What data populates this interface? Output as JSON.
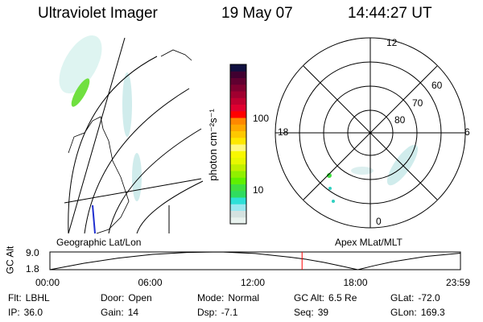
{
  "header": {
    "instrument": "Ultraviolet Imager",
    "date": "19 May 07",
    "time": "14:44:27 UT"
  },
  "colorbar": {
    "label": "photon cm⁻²s⁻¹",
    "ticks": [
      "100",
      "10"
    ],
    "colors": [
      "#e8f2ee",
      "#d4e2e0",
      "#9ae8f0",
      "#2ee0d8",
      "#30dc60",
      "#40e040",
      "#60f000",
      "#90f000",
      "#c0f000",
      "#e8f800",
      "#f8f800",
      "#fff880",
      "#ffe800",
      "#ffc800",
      "#ffa800",
      "#ff8800",
      "#ff0000",
      "#e00030",
      "#c00030",
      "#a00030",
      "#800030",
      "#600030",
      "#400030",
      "#101040"
    ]
  },
  "polar": {
    "mlt_labels": [
      "12",
      "18",
      "6",
      "0"
    ],
    "lat_labels": [
      "60",
      "70",
      "80"
    ]
  },
  "panels": {
    "left_label": "Geographic Lat/Lon",
    "right_label": "Apex MLat/MLT"
  },
  "chart_data": {
    "type": "line",
    "ylabel": "GC Alt",
    "yticks": [
      "9.0",
      "1.8"
    ],
    "ylim": [
      1.8,
      9.0
    ],
    "xticks": [
      "00:00",
      "06:00",
      "12:00",
      "18:00",
      "23:59"
    ],
    "xlim": [
      0,
      24
    ],
    "current_time_hours": 14.74,
    "marker_color": "#ff0000",
    "x": [
      0,
      2,
      4,
      6,
      8,
      10,
      12,
      14,
      15,
      16,
      17,
      18,
      19,
      20,
      22,
      24
    ],
    "y": [
      1.8,
      4.4,
      6.5,
      8.0,
      8.8,
      9.0,
      8.4,
      6.9,
      6.0,
      4.8,
      3.3,
      1.8,
      3.5,
      5.0,
      7.2,
      8.5
    ]
  },
  "status": [
    {
      "label": "Flt:",
      "value": "LBHL"
    },
    {
      "label": "Door:",
      "value": "Open"
    },
    {
      "label": "Mode:",
      "value": "Normal"
    },
    {
      "label": "GC Alt:",
      "value": "6.5 Re"
    },
    {
      "label": "GLat:",
      "value": "-72.0"
    },
    {
      "label": "IP:",
      "value": "36.0"
    },
    {
      "label": "Gain:",
      "value": "14"
    },
    {
      "label": "Dsp:",
      "value": "-7.1"
    },
    {
      "label": "Seq:",
      "value": "39"
    },
    {
      "label": "GLon:",
      "value": "169.3"
    }
  ]
}
